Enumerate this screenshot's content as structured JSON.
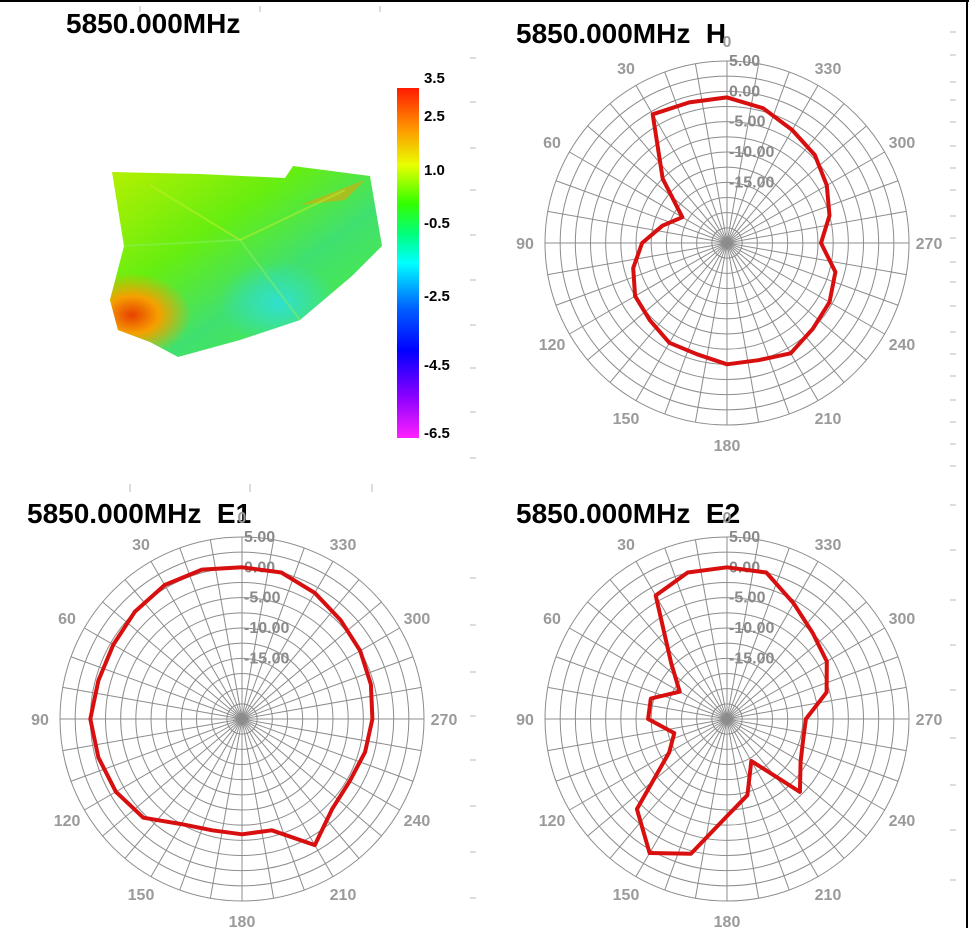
{
  "heatmap": {
    "title": "5850.000MHz",
    "colorbar_ticks": [
      "3.5",
      "2.5",
      "1.0",
      "-0.5",
      "-2.5",
      "-4.5",
      "-6.5"
    ],
    "colorbar_range": [
      -6.5,
      3.5
    ],
    "colors": [
      "#ff0000",
      "#ff8000",
      "#ffff00",
      "#00ff00",
      "#00ffff",
      "#0000ff",
      "#ff00ff"
    ]
  },
  "chart_data": [
    {
      "type": "polar",
      "title": "5850.000MHz  H",
      "angle_labels": [
        "0",
        "30",
        "60",
        "90",
        "120",
        "150",
        "180",
        "210",
        "240",
        "270",
        "300",
        "330"
      ],
      "radial_labels": [
        "5.00",
        "0.00",
        "-5.00",
        "-10.00",
        "-15.00"
      ],
      "rlim": [
        -25,
        5
      ],
      "angle_direction": "counterclockwise",
      "series": [
        {
          "color": "#d80f0f",
          "angles": [
            0,
            15,
            30,
            45,
            60,
            75,
            90,
            105,
            120,
            135,
            150,
            165,
            180,
            195,
            210,
            225,
            240,
            255,
            270,
            285,
            300,
            315,
            330,
            345
          ],
          "values": [
            -1,
            -1,
            -0.5,
            -10,
            -16.5,
            -14,
            -11,
            -9,
            -7.5,
            -7,
            -6,
            -6,
            -5,
            -5,
            -4,
            -5,
            -5.5,
            -6.5,
            -9.5,
            -7.5,
            -6,
            -4.5,
            -3.5,
            -2
          ]
        }
      ]
    },
    {
      "type": "polar",
      "title": "5850.000MHz  E1",
      "angle_labels": [
        "0",
        "30",
        "60",
        "90",
        "120",
        "150",
        "180",
        "210",
        "240",
        "270",
        "300",
        "330"
      ],
      "radial_labels": [
        "5.00",
        "0.00",
        "-5.00",
        "-10.00",
        "-15.00"
      ],
      "rlim": [
        -25,
        5
      ],
      "angle_direction": "counterclockwise",
      "series": [
        {
          "color": "#d80f0f",
          "angles": [
            0,
            15,
            30,
            45,
            60,
            75,
            90,
            105,
            120,
            135,
            150,
            165,
            180,
            195,
            210,
            225,
            240,
            255,
            270,
            285,
            300,
            315,
            330,
            345
          ],
          "values": [
            0,
            0.5,
            0.5,
            0,
            -0.5,
            -0.5,
            0,
            -0.5,
            -1,
            -2,
            -5,
            -6,
            -6,
            -6,
            -1,
            -4,
            -4.5,
            -4,
            -3.5,
            -3,
            -2.5,
            -2,
            -1,
            0
          ]
        }
      ]
    },
    {
      "type": "polar",
      "title": "5850.000MHz  E2",
      "angle_labels": [
        "0",
        "30",
        "60",
        "90",
        "120",
        "150",
        "180",
        "210",
        "240",
        "270",
        "300",
        "330"
      ],
      "radial_labels": [
        "5.00",
        "0.00",
        "-5.00",
        "-10.00",
        "-15.00"
      ],
      "rlim": [
        -25,
        5
      ],
      "angle_direction": "counterclockwise",
      "series": [
        {
          "color": "#d80f0f",
          "angles": [
            0,
            15,
            30,
            45,
            60,
            75,
            90,
            105,
            120,
            135,
            150,
            165,
            180,
            195,
            210,
            225,
            240,
            255,
            270,
            285,
            300,
            315,
            330,
            345
          ],
          "values": [
            0,
            0,
            -1.5,
            -12,
            -16,
            -12,
            -12,
            -16,
            -14,
            -4,
            0.5,
            -2,
            -9,
            -12,
            -17,
            -8,
            -11,
            -12,
            -12,
            -8,
            -6,
            -5,
            -3,
            0
          ]
        }
      ]
    }
  ]
}
